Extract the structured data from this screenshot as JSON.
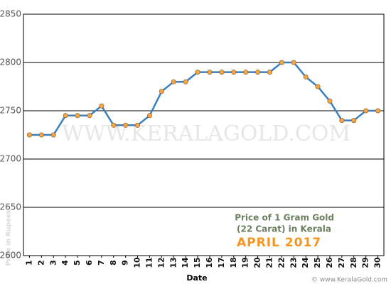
{
  "chart_data": {
    "type": "line",
    "x_label": "Date",
    "y_label": "Price in Rupees",
    "annotations": [
      "Price of 1 Gram Gold",
      "(22 Carat) in Kerala",
      "APRIL 2017"
    ],
    "watermark": "WWW.KERALAGOLD.COM",
    "footer": "© www.KeralaGold.com",
    "x": [
      1,
      2,
      3,
      4,
      5,
      6,
      7,
      8,
      9,
      10,
      11,
      12,
      13,
      14,
      15,
      16,
      17,
      18,
      19,
      20,
      21,
      22,
      23,
      24,
      25,
      26,
      27,
      28,
      29,
      30
    ],
    "series": [
      {
        "color": "#3a7fbf",
        "marker_color": "#f5a444",
        "values": [
          2725,
          2725,
          2725,
          2745,
          2745,
          2745,
          2755,
          2735,
          2735,
          2735,
          2745,
          2770,
          2780,
          2780,
          2790,
          2790,
          2790,
          2790,
          2790,
          2790,
          2790,
          2800,
          2800,
          2785,
          2775,
          2760,
          2740,
          2740,
          2750,
          2750
        ]
      }
    ],
    "xlim": [
      0.5,
      30.5
    ],
    "xticks": [
      1,
      2,
      3,
      4,
      5,
      6,
      7,
      8,
      9,
      10,
      11,
      12,
      13,
      14,
      15,
      16,
      17,
      18,
      19,
      20,
      21,
      22,
      23,
      24,
      25,
      26,
      27,
      28,
      29,
      30
    ],
    "ylim": [
      2600,
      2850
    ],
    "yticks": [
      2600,
      2650,
      2700,
      2750,
      2800,
      2850
    ],
    "grid": true
  }
}
